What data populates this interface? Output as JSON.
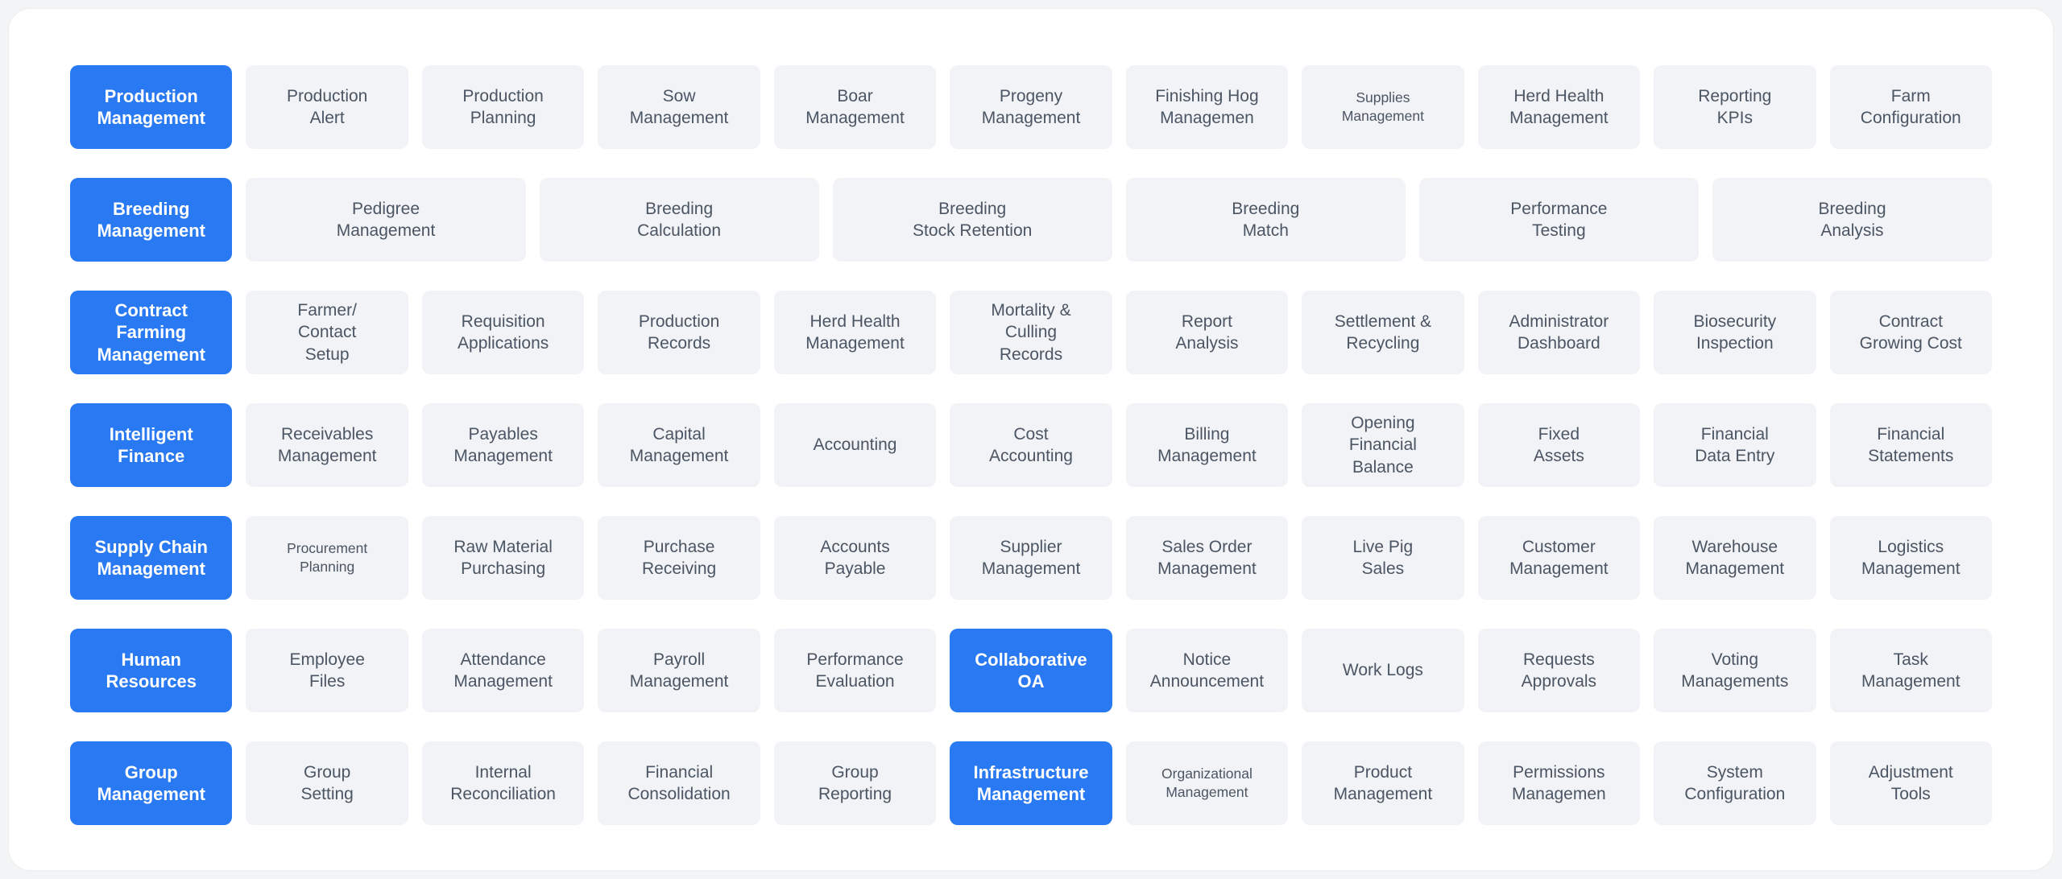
{
  "colors": {
    "accent_blue": "#2979F2",
    "tile_bg": "#F1F3F6",
    "tile_text": "#4B5563",
    "card_bg": "#FFFFFF",
    "page_bg": "#F3F4F6"
  },
  "grid": {
    "rows": [
      {
        "layout": "normal",
        "tiles": [
          {
            "label": "Production\nManagement",
            "variant": "primary"
          },
          {
            "label": "Production\nAlert",
            "variant": "default"
          },
          {
            "label": "Production\nPlanning",
            "variant": "default"
          },
          {
            "label": "Sow\nManagement",
            "variant": "default"
          },
          {
            "label": "Boar\nManagement",
            "variant": "default"
          },
          {
            "label": "Progeny\nManagement",
            "variant": "default"
          },
          {
            "label": "Finishing Hog\nManagemen",
            "variant": "default"
          },
          {
            "label": "Supplies\nManagement",
            "variant": "small"
          },
          {
            "label": "Herd Health\nManagement",
            "variant": "default"
          },
          {
            "label": "Reporting\nKPIs",
            "variant": "default"
          },
          {
            "label": "Farm\nConfiguration",
            "variant": "default"
          }
        ]
      },
      {
        "layout": "wide",
        "tiles": [
          {
            "label": "Breeding\nManagement",
            "variant": "primary"
          },
          {
            "label": "Pedigree\nManagement",
            "variant": "default"
          },
          {
            "label": "Breeding\nCalculation",
            "variant": "default"
          },
          {
            "label": "Breeding\nStock Retention",
            "variant": "default"
          },
          {
            "label": "Breeding\nMatch",
            "variant": "default"
          },
          {
            "label": "Performance\nTesting",
            "variant": "default"
          },
          {
            "label": "Breeding\nAnalysis",
            "variant": "default"
          }
        ]
      },
      {
        "layout": "normal",
        "tiles": [
          {
            "label": "Contract\nFarming\nManagement",
            "variant": "primary"
          },
          {
            "label": "Farmer/\nContact\nSetup",
            "variant": "default"
          },
          {
            "label": "Requisition\nApplications",
            "variant": "default"
          },
          {
            "label": "Production\nRecords",
            "variant": "default"
          },
          {
            "label": "Herd Health\nManagement",
            "variant": "default"
          },
          {
            "label": "Mortality &\nCulling\nRecords",
            "variant": "default"
          },
          {
            "label": "Report\nAnalysis",
            "variant": "default"
          },
          {
            "label": "Settlement &\nRecycling",
            "variant": "default"
          },
          {
            "label": "Administrator\nDashboard",
            "variant": "default"
          },
          {
            "label": "Biosecurity\nInspection",
            "variant": "default"
          },
          {
            "label": "Contract\nGrowing Cost",
            "variant": "default"
          }
        ]
      },
      {
        "layout": "normal",
        "tiles": [
          {
            "label": "Intelligent\nFinance",
            "variant": "primary"
          },
          {
            "label": "Receivables\nManagement",
            "variant": "default"
          },
          {
            "label": "Payables\nManagement",
            "variant": "default"
          },
          {
            "label": "Capital\nManagement",
            "variant": "default"
          },
          {
            "label": "Accounting",
            "variant": "default"
          },
          {
            "label": "Cost\nAccounting",
            "variant": "default"
          },
          {
            "label": "Billing\nManagement",
            "variant": "default"
          },
          {
            "label": "Opening\nFinancial\nBalance",
            "variant": "default"
          },
          {
            "label": "Fixed\nAssets",
            "variant": "default"
          },
          {
            "label": "Financial\nData Entry",
            "variant": "default"
          },
          {
            "label": "Financial\nStatements",
            "variant": "default"
          }
        ]
      },
      {
        "layout": "normal",
        "tiles": [
          {
            "label": "Supply Chain\nManagement",
            "variant": "primary"
          },
          {
            "label": "Procurement\nPlanning",
            "variant": "small"
          },
          {
            "label": "Raw Material\nPurchasing",
            "variant": "default"
          },
          {
            "label": "Purchase\nReceiving",
            "variant": "default"
          },
          {
            "label": "Accounts\nPayable",
            "variant": "default"
          },
          {
            "label": "Supplier\nManagement",
            "variant": "default"
          },
          {
            "label": "Sales Order\nManagement",
            "variant": "default"
          },
          {
            "label": "Live Pig\nSales",
            "variant": "default"
          },
          {
            "label": "Customer\nManagement",
            "variant": "default"
          },
          {
            "label": "Warehouse\nManagement",
            "variant": "default"
          },
          {
            "label": "Logistics\nManagement",
            "variant": "default"
          }
        ]
      },
      {
        "layout": "normal",
        "tiles": [
          {
            "label": "Human\nResources",
            "variant": "primary"
          },
          {
            "label": "Employee\nFiles",
            "variant": "default"
          },
          {
            "label": "Attendance\nManagement",
            "variant": "default"
          },
          {
            "label": "Payroll\nManagement",
            "variant": "default"
          },
          {
            "label": "Performance\nEvaluation",
            "variant": "default"
          },
          {
            "label": "Collaborative\nOA",
            "variant": "primary"
          },
          {
            "label": "Notice\nAnnouncement",
            "variant": "default"
          },
          {
            "label": "Work Logs",
            "variant": "default"
          },
          {
            "label": "Requests\nApprovals",
            "variant": "default"
          },
          {
            "label": "Voting\nManagements",
            "variant": "default"
          },
          {
            "label": "Task\nManagement",
            "variant": "default"
          }
        ]
      },
      {
        "layout": "normal",
        "tiles": [
          {
            "label": "Group\nManagement",
            "variant": "primary"
          },
          {
            "label": "Group\nSetting",
            "variant": "default"
          },
          {
            "label": "Internal\nReconciliation",
            "variant": "default"
          },
          {
            "label": "Financial\nConsolidation",
            "variant": "default"
          },
          {
            "label": "Group\nReporting",
            "variant": "default"
          },
          {
            "label": "Infrastructure\nManagement",
            "variant": "primary"
          },
          {
            "label": "Organizational\nManagement",
            "variant": "small"
          },
          {
            "label": "Product\nManagement",
            "variant": "default"
          },
          {
            "label": "Permissions\nManagemen",
            "variant": "default"
          },
          {
            "label": "System\nConfiguration",
            "variant": "default"
          },
          {
            "label": "Adjustment\nTools",
            "variant": "default"
          }
        ]
      }
    ]
  }
}
